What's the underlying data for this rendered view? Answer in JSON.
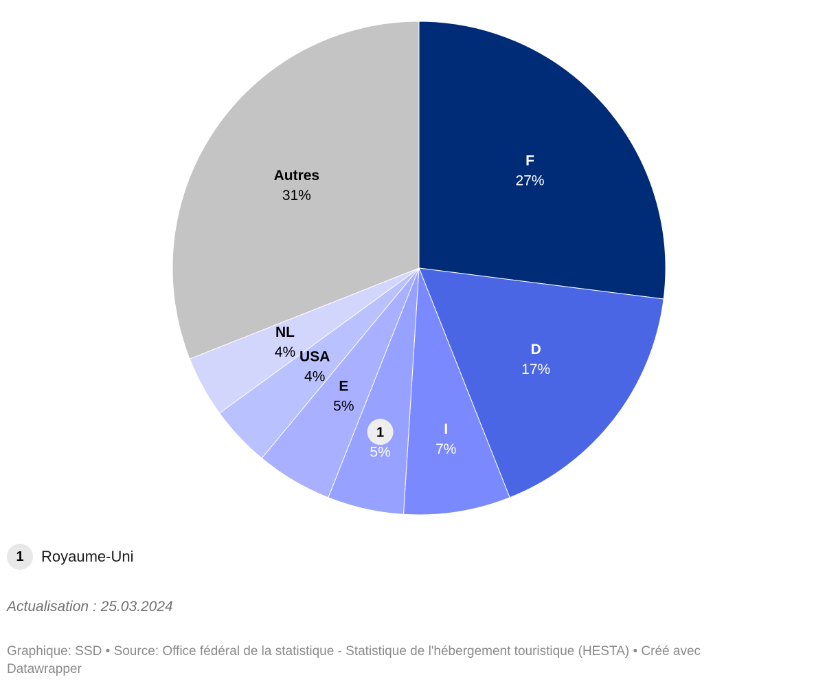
{
  "chart_data": {
    "type": "pie",
    "slices": [
      {
        "label": "F",
        "value": 27,
        "value_label": "27%",
        "color": "#002b76",
        "text_color": "#ffffff"
      },
      {
        "label": "D",
        "value": 17,
        "value_label": "17%",
        "color": "#4a66e4",
        "text_color": "#ffffff"
      },
      {
        "label": "I",
        "value": 7,
        "value_label": "7%",
        "color": "#7b89ff",
        "text_color": "#ffffff"
      },
      {
        "label": "1",
        "value": 5,
        "value_label": "5%",
        "color": "#97a1ff",
        "text_color": "#ffffff",
        "badge": true
      },
      {
        "label": "E",
        "value": 5,
        "value_label": "5%",
        "color": "#a8b0ff",
        "text_color": "#000000"
      },
      {
        "label": "USA",
        "value": 4,
        "value_label": "4%",
        "color": "#bac1ff",
        "text_color": "#000000"
      },
      {
        "label": "NL",
        "value": 4,
        "value_label": "4%",
        "color": "#d2d6fd",
        "text_color": "#000000"
      },
      {
        "label": "Autres",
        "value": 31,
        "value_label": "31%",
        "color": "#c4c4c4",
        "text_color": "#000000"
      }
    ]
  },
  "legend": {
    "badge": "1",
    "label": "Royaume-Uni"
  },
  "update_note": "Actualisation : 25.03.2024",
  "footer": {
    "line1": "Graphique: SSD • Source: Office fédéral de la statistique - Statistique de l'hébergement touristique (HESTA) • Créé avec",
    "line2": "Datawrapper"
  }
}
